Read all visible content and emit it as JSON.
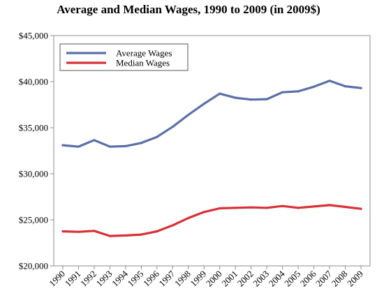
{
  "chart_data": {
    "type": "line",
    "title": "Average and Median Wages, 1990 to 2009 (in 2009$)",
    "xlabel": "",
    "ylabel": "",
    "x": [
      "1990",
      "1991",
      "1992",
      "1993",
      "1994",
      "1995",
      "1996",
      "1997",
      "1998",
      "1999",
      "2000",
      "2001",
      "2002",
      "2003",
      "2004",
      "2005",
      "2006",
      "2007",
      "2008",
      "2009"
    ],
    "ylim": [
      20000,
      45000
    ],
    "yticks": [
      20000,
      25000,
      30000,
      35000,
      40000,
      45000
    ],
    "ytick_labels": [
      "$20,000",
      "$25,000",
      "$30,000",
      "$35,000",
      "$40,000",
      "$45,000"
    ],
    "grid": false,
    "legend": "top-left",
    "series": [
      {
        "name": "Average Wages",
        "color": "#5b6fa8",
        "values": [
          33100,
          32950,
          33650,
          32950,
          33000,
          33350,
          34000,
          35100,
          36400,
          37600,
          38700,
          38250,
          38050,
          38100,
          38850,
          38950,
          39450,
          40100,
          39500,
          39300
        ]
      },
      {
        "name": "Median Wages",
        "color": "#d93036",
        "values": [
          23750,
          23700,
          23800,
          23250,
          23300,
          23400,
          23750,
          24400,
          25200,
          25850,
          26250,
          26300,
          26350,
          26300,
          26500,
          26300,
          26450,
          26600,
          26400,
          26200
        ]
      }
    ]
  }
}
